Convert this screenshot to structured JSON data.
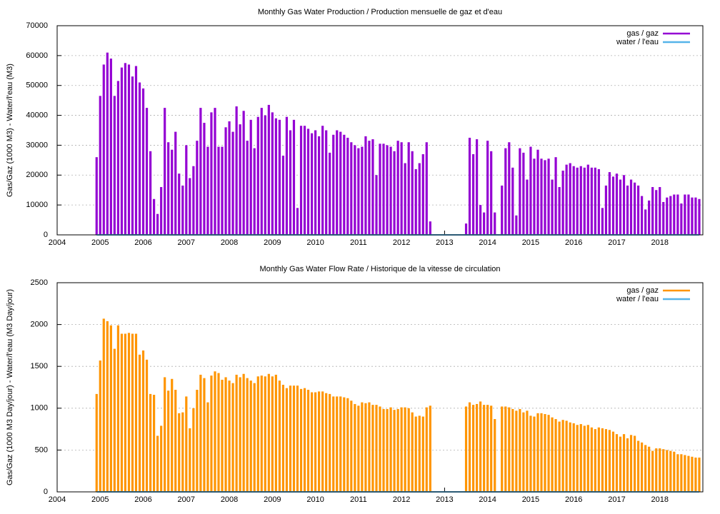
{
  "chart_data": [
    {
      "type": "bar",
      "title": "Monthly Gas  Water Production / Production mensuelle de gaz et d'eau",
      "y_label": "Gas/Gaz (1000 M3) - Water/l'eau (M3)",
      "xlim": [
        2004,
        2019
      ],
      "xticks": [
        2004,
        2005,
        2006,
        2007,
        2008,
        2009,
        2010,
        2011,
        2012,
        2013,
        2014,
        2015,
        2016,
        2017,
        2018
      ],
      "ylim": [
        0,
        70000
      ],
      "yticks": [
        0,
        10000,
        20000,
        30000,
        40000,
        50000,
        60000,
        70000
      ],
      "grid": true,
      "legend": "top-right",
      "x": [
        2004.917,
        2005,
        2005.083,
        2005.167,
        2005.25,
        2005.333,
        2005.417,
        2005.5,
        2005.583,
        2005.667,
        2005.75,
        2005.833,
        2005.917,
        2006,
        2006.083,
        2006.167,
        2006.25,
        2006.333,
        2006.417,
        2006.5,
        2006.583,
        2006.667,
        2006.75,
        2006.833,
        2006.917,
        2007,
        2007.083,
        2007.167,
        2007.25,
        2007.333,
        2007.417,
        2007.5,
        2007.583,
        2007.667,
        2007.75,
        2007.833,
        2007.917,
        2008,
        2008.083,
        2008.167,
        2008.25,
        2008.333,
        2008.417,
        2008.5,
        2008.583,
        2008.667,
        2008.75,
        2008.833,
        2008.917,
        2009,
        2009.083,
        2009.167,
        2009.25,
        2009.333,
        2009.417,
        2009.5,
        2009.583,
        2009.667,
        2009.75,
        2009.833,
        2009.917,
        2010,
        2010.083,
        2010.167,
        2010.25,
        2010.333,
        2010.417,
        2010.5,
        2010.583,
        2010.667,
        2010.75,
        2010.833,
        2010.917,
        2011,
        2011.083,
        2011.167,
        2011.25,
        2011.333,
        2011.417,
        2011.5,
        2011.583,
        2011.667,
        2011.75,
        2011.833,
        2011.917,
        2012,
        2012.083,
        2012.167,
        2012.25,
        2012.333,
        2012.417,
        2012.5,
        2012.583,
        2012.667,
        2012.75,
        2012.833,
        2012.917,
        2013,
        2013.083,
        2013.167,
        2013.25,
        2013.333,
        2013.417,
        2013.5,
        2013.583,
        2013.667,
        2013.75,
        2013.833,
        2013.917,
        2014,
        2014.083,
        2014.167,
        2014.25,
        2014.333,
        2014.417,
        2014.5,
        2014.583,
        2014.667,
        2014.75,
        2014.833,
        2014.917,
        2015,
        2015.083,
        2015.167,
        2015.25,
        2015.333,
        2015.417,
        2015.5,
        2015.583,
        2015.667,
        2015.75,
        2015.833,
        2015.917,
        2016,
        2016.083,
        2016.167,
        2016.25,
        2016.333,
        2016.417,
        2016.5,
        2016.583,
        2016.667,
        2016.75,
        2016.833,
        2016.917,
        2017,
        2017.083,
        2017.167,
        2017.25,
        2017.333,
        2017.417,
        2017.5,
        2017.583,
        2017.667,
        2017.75,
        2017.833,
        2017.917,
        2018,
        2018.083,
        2018.167,
        2018.25,
        2018.333,
        2018.417,
        2018.5,
        2018.583,
        2018.667,
        2018.75,
        2018.833,
        2018.917
      ],
      "series": [
        {
          "name": "gas / gaz",
          "color": "#9400d3",
          "type": "bar",
          "values": [
            26000,
            46500,
            57000,
            61000,
            59000,
            46500,
            51500,
            56000,
            57500,
            57000,
            53000,
            56500,
            51000,
            49000,
            42500,
            28000,
            12000,
            7000,
            16000,
            42500,
            31000,
            28500,
            34500,
            20500,
            16500,
            30000,
            19000,
            23000,
            31500,
            42500,
            37500,
            29500,
            41000,
            42500,
            29500,
            29500,
            36000,
            38000,
            34500,
            43000,
            37000,
            41500,
            31500,
            38500,
            29000,
            39500,
            42500,
            40000,
            43500,
            41000,
            39000,
            38500,
            26500,
            39500,
            35000,
            38500,
            9000,
            36500,
            36500,
            35500,
            34000,
            35000,
            33000,
            36500,
            35000,
            27500,
            33500,
            35000,
            34500,
            33500,
            32500,
            31000,
            30000,
            29000,
            29500,
            33000,
            31500,
            32000,
            20000,
            30500,
            30500,
            30000,
            29500,
            28000,
            31500,
            31000,
            24000,
            31000,
            28000,
            22000,
            24000,
            27000,
            31000,
            4500,
            0,
            0,
            0,
            0,
            0,
            0,
            0,
            0,
            0,
            3800,
            32500,
            27000,
            32000,
            10000,
            7500,
            31500,
            28000,
            7500,
            0,
            16500,
            29000,
            31000,
            22500,
            6500,
            29000,
            27500,
            18500,
            29500,
            25500,
            28500,
            25500,
            25000,
            25500,
            18500,
            26000,
            16000,
            21500,
            23500,
            24000,
            23000,
            22500,
            23000,
            22500,
            23500,
            22500,
            22500,
            22000,
            9000,
            16500,
            21000,
            19500,
            20500,
            18500,
            20000,
            16500,
            18500,
            17500,
            16500,
            13000,
            8500,
            11500,
            16000,
            15000,
            16000,
            11000,
            12500,
            13000,
            13500,
            13500,
            10500,
            13500,
            13500,
            12500,
            12500,
            12000
          ]
        },
        {
          "name": "water / l'eau",
          "color": "#56b4e9",
          "type": "line",
          "values": [
            0,
            0,
            0,
            0,
            0,
            0,
            0,
            0,
            0,
            0,
            0,
            0,
            0,
            0,
            0,
            0,
            0,
            0,
            0,
            0,
            0,
            0,
            0,
            0,
            0,
            0,
            0,
            0,
            0,
            0,
            0,
            0,
            0,
            0,
            0,
            0,
            0,
            0,
            0,
            0,
            0,
            0,
            0,
            0,
            0,
            0,
            0,
            0,
            0,
            0,
            0,
            0,
            0,
            0,
            0,
            0,
            0,
            0,
            0,
            0,
            0,
            0,
            0,
            0,
            0,
            0,
            0,
            0,
            0,
            0,
            0,
            0,
            0,
            0,
            0,
            0,
            0,
            0,
            0,
            0,
            0,
            0,
            0,
            0,
            0,
            0,
            0,
            0,
            0,
            0,
            0,
            0,
            0,
            0,
            0,
            0,
            0,
            0,
            0,
            0,
            0,
            0,
            0,
            0,
            0,
            0,
            0,
            0,
            0,
            0,
            0,
            0,
            0,
            0,
            0,
            0,
            0,
            0,
            0,
            0,
            0,
            0,
            0,
            0,
            0,
            0,
            0,
            0,
            0,
            0,
            0,
            0,
            0,
            0,
            0,
            0,
            0,
            0,
            0,
            0,
            0,
            0,
            0,
            0,
            0,
            0,
            0,
            0,
            0,
            0,
            0,
            0,
            0,
            0,
            0,
            0,
            0,
            0,
            0,
            0,
            0,
            0,
            0,
            0,
            0,
            0,
            0,
            0,
            0
          ]
        }
      ]
    },
    {
      "type": "bar",
      "title": "Monthly Gas  Water Flow Rate / Historique de la vitesse de circulation",
      "y_label": "Gas/Gaz (1000 M3 Day/jour) - Water/l'eau (M3 Day/jour)",
      "xlim": [
        2004,
        2019
      ],
      "xticks": [
        2004,
        2005,
        2006,
        2007,
        2008,
        2009,
        2010,
        2011,
        2012,
        2013,
        2014,
        2015,
        2016,
        2017,
        2018
      ],
      "ylim": [
        0,
        2500
      ],
      "yticks": [
        0,
        500,
        1000,
        1500,
        2000,
        2500
      ],
      "grid": true,
      "legend": "top-right",
      "x": [
        2004.917,
        2005,
        2005.083,
        2005.167,
        2005.25,
        2005.333,
        2005.417,
        2005.5,
        2005.583,
        2005.667,
        2005.75,
        2005.833,
        2005.917,
        2006,
        2006.083,
        2006.167,
        2006.25,
        2006.333,
        2006.417,
        2006.5,
        2006.583,
        2006.667,
        2006.75,
        2006.833,
        2006.917,
        2007,
        2007.083,
        2007.167,
        2007.25,
        2007.333,
        2007.417,
        2007.5,
        2007.583,
        2007.667,
        2007.75,
        2007.833,
        2007.917,
        2008,
        2008.083,
        2008.167,
        2008.25,
        2008.333,
        2008.417,
        2008.5,
        2008.583,
        2008.667,
        2008.75,
        2008.833,
        2008.917,
        2009,
        2009.083,
        2009.167,
        2009.25,
        2009.333,
        2009.417,
        2009.5,
        2009.583,
        2009.667,
        2009.75,
        2009.833,
        2009.917,
        2010,
        2010.083,
        2010.167,
        2010.25,
        2010.333,
        2010.417,
        2010.5,
        2010.583,
        2010.667,
        2010.75,
        2010.833,
        2010.917,
        2011,
        2011.083,
        2011.167,
        2011.25,
        2011.333,
        2011.417,
        2011.5,
        2011.583,
        2011.667,
        2011.75,
        2011.833,
        2011.917,
        2012,
        2012.083,
        2012.167,
        2012.25,
        2012.333,
        2012.417,
        2012.5,
        2012.583,
        2012.667,
        2012.75,
        2012.833,
        2012.917,
        2013,
        2013.083,
        2013.167,
        2013.25,
        2013.333,
        2013.417,
        2013.5,
        2013.583,
        2013.667,
        2013.75,
        2013.833,
        2013.917,
        2014,
        2014.083,
        2014.167,
        2014.25,
        2014.333,
        2014.417,
        2014.5,
        2014.583,
        2014.667,
        2014.75,
        2014.833,
        2014.917,
        2015,
        2015.083,
        2015.167,
        2015.25,
        2015.333,
        2015.417,
        2015.5,
        2015.583,
        2015.667,
        2015.75,
        2015.833,
        2015.917,
        2016,
        2016.083,
        2016.167,
        2016.25,
        2016.333,
        2016.417,
        2016.5,
        2016.583,
        2016.667,
        2016.75,
        2016.833,
        2016.917,
        2017,
        2017.083,
        2017.167,
        2017.25,
        2017.333,
        2017.417,
        2017.5,
        2017.583,
        2017.667,
        2017.75,
        2017.833,
        2017.917,
        2018,
        2018.083,
        2018.167,
        2018.25,
        2018.333,
        2018.417,
        2018.5,
        2018.583,
        2018.667,
        2018.75,
        2018.833,
        2018.917
      ],
      "series": [
        {
          "name": "gas / gaz",
          "color": "#ff9500",
          "type": "bar",
          "values": [
            1170,
            1570,
            2070,
            2040,
            1990,
            1710,
            1990,
            1890,
            1890,
            1900,
            1890,
            1890,
            1640,
            1690,
            1580,
            1170,
            1160,
            670,
            790,
            1370,
            1210,
            1350,
            1220,
            940,
            950,
            1140,
            760,
            1000,
            1220,
            1400,
            1360,
            1070,
            1390,
            1440,
            1420,
            1340,
            1370,
            1330,
            1300,
            1400,
            1370,
            1410,
            1360,
            1330,
            1300,
            1380,
            1390,
            1380,
            1410,
            1380,
            1400,
            1330,
            1280,
            1240,
            1270,
            1270,
            1270,
            1230,
            1240,
            1220,
            1190,
            1190,
            1200,
            1200,
            1180,
            1170,
            1140,
            1140,
            1140,
            1130,
            1120,
            1090,
            1050,
            1030,
            1070,
            1060,
            1070,
            1040,
            1040,
            1020,
            990,
            990,
            1010,
            980,
            990,
            1010,
            1010,
            1000,
            950,
            900,
            910,
            900,
            1010,
            1030,
            0,
            0,
            0,
            0,
            0,
            0,
            0,
            0,
            0,
            1020,
            1070,
            1040,
            1050,
            1080,
            1040,
            1040,
            1030,
            870,
            0,
            1020,
            1020,
            1010,
            990,
            970,
            990,
            950,
            970,
            910,
            900,
            940,
            940,
            930,
            920,
            890,
            870,
            840,
            860,
            850,
            830,
            820,
            800,
            810,
            790,
            800,
            770,
            750,
            770,
            760,
            750,
            740,
            720,
            690,
            660,
            690,
            640,
            680,
            670,
            610,
            590,
            560,
            540,
            490,
            520,
            520,
            510,
            500,
            490,
            480,
            450,
            450,
            440,
            430,
            420,
            410,
            410
          ]
        },
        {
          "name": "water / l'eau",
          "color": "#56b4e9",
          "type": "line",
          "values": [
            0,
            0,
            0,
            0,
            0,
            0,
            0,
            0,
            0,
            0,
            0,
            0,
            0,
            0,
            0,
            0,
            0,
            0,
            0,
            0,
            0,
            0,
            0,
            0,
            0,
            0,
            0,
            0,
            0,
            0,
            0,
            0,
            0,
            0,
            0,
            0,
            0,
            0,
            0,
            0,
            0,
            0,
            0,
            0,
            0,
            0,
            0,
            0,
            0,
            0,
            0,
            0,
            0,
            0,
            0,
            0,
            0,
            0,
            0,
            0,
            0,
            0,
            0,
            0,
            0,
            0,
            0,
            0,
            0,
            0,
            0,
            0,
            0,
            0,
            0,
            0,
            0,
            0,
            0,
            0,
            0,
            0,
            0,
            0,
            0,
            0,
            0,
            0,
            0,
            0,
            0,
            0,
            0,
            0,
            0,
            0,
            0,
            0,
            0,
            0,
            0,
            0,
            0,
            0,
            0,
            0,
            0,
            0,
            0,
            0,
            0,
            0,
            0,
            0,
            0,
            0,
            0,
            0,
            0,
            0,
            0,
            0,
            0,
            0,
            0,
            0,
            0,
            0,
            0,
            0,
            0,
            0,
            0,
            0,
            0,
            0,
            0,
            0,
            0,
            0,
            0,
            0,
            0,
            0,
            0,
            0,
            0,
            0,
            0,
            0,
            0,
            0,
            0,
            0,
            0,
            0,
            0,
            0,
            0,
            0,
            0,
            0,
            0,
            0,
            0,
            0,
            0,
            0,
            0
          ]
        }
      ]
    }
  ]
}
